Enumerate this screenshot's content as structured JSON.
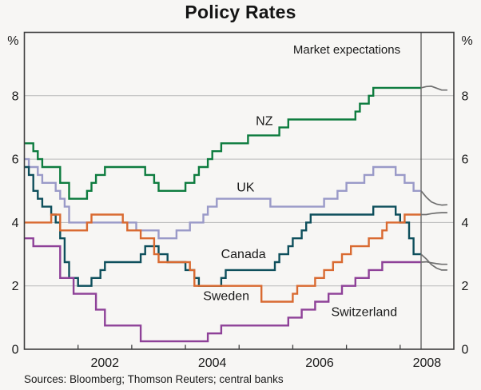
{
  "header": {
    "title": "Policy Rates"
  },
  "annotations": {
    "market_expectations": "Market expectations"
  },
  "footer": {
    "sources": "Sources: Bloomberg; Thomson Reuters; central banks"
  },
  "axes": {
    "unit_left": "%",
    "unit_right": "%",
    "ytick_labels": [
      "0",
      "2",
      "4",
      "6",
      "8"
    ],
    "xtick_labels": [
      "2002",
      "2004",
      "2006",
      "2008"
    ]
  },
  "chart_data": {
    "type": "line",
    "title": "Policy Rates",
    "subtitle": "",
    "ylabel": "%",
    "grid": true,
    "legend_position": "inline-labels",
    "ylim": [
      0,
      10
    ],
    "yticks": [
      0,
      2,
      4,
      6,
      8
    ],
    "xlim": [
      2001,
      2009
    ],
    "year_ticks": [
      2002,
      2003,
      2004,
      2005,
      2006,
      2007,
      2008
    ],
    "xtick_label_years": [
      2002,
      2004,
      2006,
      2008
    ],
    "x_start_year": 2001,
    "x_monthly_resolution": true,
    "divider_year": 2008.39,
    "expectations_end_year": 2008.87,
    "expectations_color": "#6f6f6f",
    "divider_color": "#4d4d4d",
    "annotation": {
      "text": "Market expectations",
      "x_year": 2007.0,
      "y_value": 9.35
    },
    "series": [
      {
        "name": "NZ",
        "slug": "nz",
        "color": "#0e7c3f",
        "label": {
          "text": "NZ",
          "x_year": 2005.47,
          "y_value": 7.08
        },
        "monthly": [
          6.5,
          6.5,
          6.25,
          6,
          5.75,
          5.75,
          5.75,
          5.75,
          5.25,
          5.25,
          4.75,
          4.75,
          4.75,
          4.75,
          5,
          5.25,
          5.5,
          5.5,
          5.75,
          5.75,
          5.75,
          5.75,
          5.75,
          5.75,
          5.75,
          5.75,
          5.75,
          5.5,
          5.5,
          5.25,
          5,
          5,
          5,
          5,
          5,
          5,
          5.25,
          5.25,
          5.5,
          5.75,
          5.75,
          6,
          6.25,
          6.25,
          6.5,
          6.5,
          6.5,
          6.5,
          6.5,
          6.5,
          6.75,
          6.75,
          6.75,
          6.75,
          6.75,
          6.75,
          6.75,
          7,
          7,
          7.25,
          7.25,
          7.25,
          7.25,
          7.25,
          7.25,
          7.25,
          7.25,
          7.25,
          7.25,
          7.25,
          7.25,
          7.25,
          7.25,
          7.25,
          7.5,
          7.75,
          7.75,
          8,
          8.25,
          8.25,
          8.25,
          8.25,
          8.25,
          8.25,
          8.25,
          8.25,
          8.25,
          8.25,
          8.25
        ],
        "expectations": [
          8.25,
          8.29,
          8.3,
          8.24,
          8.18,
          8.18
        ]
      },
      {
        "name": "UK",
        "slug": "uk",
        "color": "#9a9ac8",
        "label": {
          "text": "UK",
          "x_year": 2005.12,
          "y_value": 4.98
        },
        "monthly": [
          6,
          5.75,
          5.75,
          5.5,
          5.25,
          5.25,
          5.25,
          5,
          4.75,
          4.5,
          4,
          4,
          4,
          4,
          4,
          4,
          4,
          4,
          4,
          4,
          4,
          4,
          4,
          4,
          4,
          3.75,
          3.75,
          3.75,
          3.75,
          3.75,
          3.5,
          3.5,
          3.5,
          3.5,
          3.75,
          3.75,
          3.75,
          4,
          4,
          4,
          4.25,
          4.5,
          4.5,
          4.75,
          4.75,
          4.75,
          4.75,
          4.75,
          4.75,
          4.75,
          4.75,
          4.75,
          4.75,
          4.75,
          4.75,
          4.5,
          4.5,
          4.5,
          4.5,
          4.5,
          4.5,
          4.5,
          4.5,
          4.5,
          4.5,
          4.5,
          4.5,
          4.75,
          4.75,
          4.75,
          5,
          5,
          5.25,
          5.25,
          5.25,
          5.25,
          5.5,
          5.5,
          5.75,
          5.75,
          5.75,
          5.75,
          5.75,
          5.5,
          5.5,
          5.25,
          5.25,
          5,
          5
        ],
        "expectations": [
          5,
          4.8,
          4.65,
          4.58,
          4.55,
          4.56
        ]
      },
      {
        "name": "Canada",
        "slug": "canada",
        "color": "#0e4f5c",
        "label": {
          "text": "Canada",
          "x_year": 2005.08,
          "y_value": 2.87
        },
        "monthly": [
          5.75,
          5.5,
          5,
          4.75,
          4.5,
          4.5,
          4.25,
          4,
          3.5,
          2.75,
          2.25,
          2.25,
          2,
          2,
          2,
          2.25,
          2.25,
          2.5,
          2.75,
          2.75,
          2.75,
          2.75,
          2.75,
          2.75,
          2.75,
          2.75,
          3,
          3.25,
          3.25,
          3.25,
          3,
          3,
          2.75,
          2.75,
          2.75,
          2.75,
          2.5,
          2.5,
          2.25,
          2,
          2,
          2,
          2,
          2,
          2.25,
          2.5,
          2.5,
          2.5,
          2.5,
          2.5,
          2.5,
          2.5,
          2.5,
          2.5,
          2.5,
          2.5,
          2.75,
          3,
          3,
          3.25,
          3.5,
          3.5,
          3.75,
          4,
          4.25,
          4.25,
          4.25,
          4.25,
          4.25,
          4.25,
          4.25,
          4.25,
          4.25,
          4.25,
          4.25,
          4.25,
          4.25,
          4.25,
          4.5,
          4.5,
          4.5,
          4.5,
          4.5,
          4.25,
          4,
          4,
          3.5,
          3,
          3
        ],
        "expectations": [
          3,
          2.85,
          2.67,
          2.56,
          2.5,
          2.5
        ]
      },
      {
        "name": "Sweden",
        "slug": "sweden",
        "color": "#d96a31",
        "label": {
          "text": "Sweden",
          "x_year": 2004.76,
          "y_value": 1.55
        },
        "monthly": [
          4,
          4,
          4,
          4,
          4,
          4,
          4.25,
          4.25,
          3.75,
          3.75,
          3.75,
          3.75,
          3.75,
          3.75,
          4,
          4.25,
          4.25,
          4.25,
          4.25,
          4.25,
          4.25,
          4.25,
          4,
          3.75,
          3.75,
          3.75,
          3.5,
          3.5,
          3.5,
          3,
          2.75,
          2.75,
          2.75,
          2.75,
          2.75,
          2.75,
          2.75,
          2.5,
          2,
          2,
          2,
          2,
          2,
          2,
          2,
          2,
          2,
          2,
          2,
          2,
          2,
          2,
          2,
          1.5,
          1.5,
          1.5,
          1.5,
          1.5,
          1.5,
          1.5,
          1.75,
          2,
          2,
          2,
          2,
          2.25,
          2.25,
          2.5,
          2.5,
          2.75,
          2.75,
          3,
          3,
          3.25,
          3.25,
          3.25,
          3.25,
          3.5,
          3.5,
          3.5,
          3.75,
          4,
          4,
          4,
          4,
          4.25,
          4.25,
          4.25,
          4.25
        ],
        "expectations": [
          4.25,
          4.25,
          4.28,
          4.3,
          4.31,
          4.31
        ]
      },
      {
        "name": "Switzerland",
        "slug": "switzerland",
        "color": "#8e4198",
        "label": {
          "text": "Switzerland",
          "x_year": 2007.33,
          "y_value": 1.05
        },
        "monthly": [
          3.5,
          3.5,
          3.25,
          3.25,
          3.25,
          3.25,
          3.25,
          3.25,
          2.25,
          2.25,
          2.25,
          1.75,
          1.75,
          1.75,
          1.75,
          1.75,
          1.25,
          1.25,
          0.75,
          0.75,
          0.75,
          0.75,
          0.75,
          0.75,
          0.75,
          0.75,
          0.25,
          0.25,
          0.25,
          0.25,
          0.25,
          0.25,
          0.25,
          0.25,
          0.25,
          0.25,
          0.25,
          0.25,
          0.25,
          0.25,
          0.25,
          0.5,
          0.5,
          0.5,
          0.75,
          0.75,
          0.75,
          0.75,
          0.75,
          0.75,
          0.75,
          0.75,
          0.75,
          0.75,
          0.75,
          0.75,
          0.75,
          0.75,
          0.75,
          1,
          1,
          1,
          1.25,
          1.25,
          1.25,
          1.5,
          1.5,
          1.5,
          1.75,
          1.75,
          1.75,
          2,
          2,
          2,
          2.25,
          2.25,
          2.25,
          2.5,
          2.5,
          2.5,
          2.75,
          2.75,
          2.75,
          2.75,
          2.75,
          2.75,
          2.75,
          2.75,
          2.75
        ],
        "expectations": [
          2.75,
          2.76,
          2.73,
          2.7,
          2.68,
          2.68
        ]
      }
    ]
  }
}
